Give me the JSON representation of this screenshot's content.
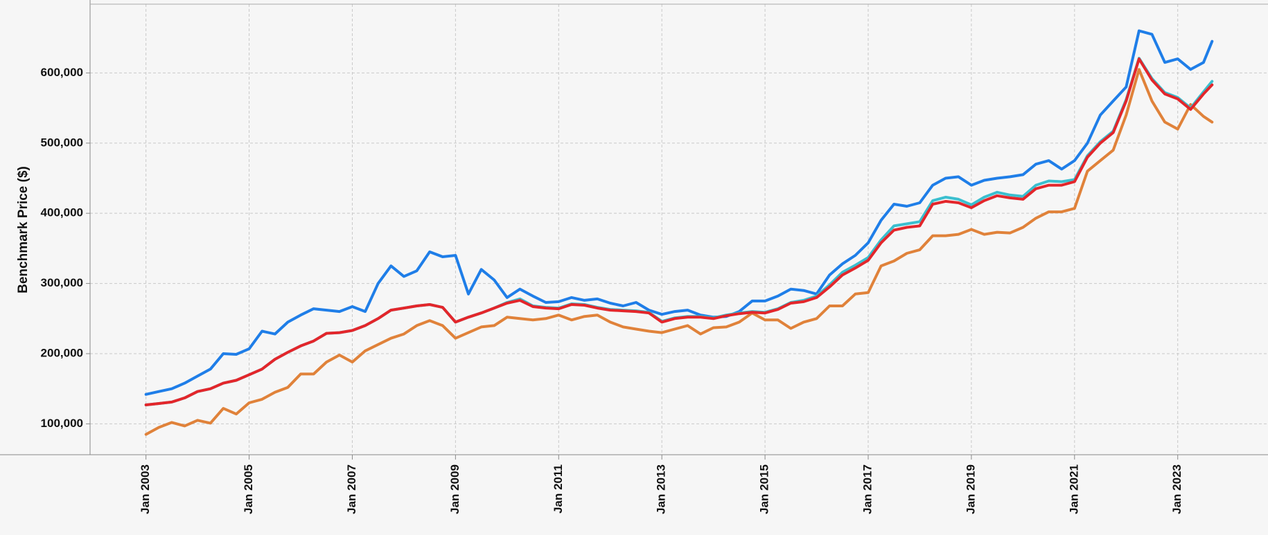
{
  "chart_data": {
    "type": "line",
    "y_label": "Benchmark Price ($)",
    "x": [
      "2003-01",
      "2003-04",
      "2003-07",
      "2003-10",
      "2004-01",
      "2004-04",
      "2004-07",
      "2004-10",
      "2005-01",
      "2005-04",
      "2005-07",
      "2005-10",
      "2006-01",
      "2006-04",
      "2006-07",
      "2006-10",
      "2007-01",
      "2007-04",
      "2007-07",
      "2007-10",
      "2008-01",
      "2008-04",
      "2008-07",
      "2008-10",
      "2009-01",
      "2009-04",
      "2009-07",
      "2009-10",
      "2010-01",
      "2010-04",
      "2010-07",
      "2010-10",
      "2011-01",
      "2011-04",
      "2011-07",
      "2011-10",
      "2012-01",
      "2012-04",
      "2012-07",
      "2012-10",
      "2013-01",
      "2013-04",
      "2013-07",
      "2013-10",
      "2014-01",
      "2014-04",
      "2014-07",
      "2014-10",
      "2015-01",
      "2015-04",
      "2015-07",
      "2015-10",
      "2016-01",
      "2016-04",
      "2016-07",
      "2016-10",
      "2017-01",
      "2017-04",
      "2017-07",
      "2017-10",
      "2018-01",
      "2018-04",
      "2018-07",
      "2018-10",
      "2019-01",
      "2019-04",
      "2019-07",
      "2019-10",
      "2020-01",
      "2020-04",
      "2020-07",
      "2020-10",
      "2021-01",
      "2021-04",
      "2021-07",
      "2021-10",
      "2022-01",
      "2022-04",
      "2022-07",
      "2022-10",
      "2023-01",
      "2023-04",
      "2023-07",
      "2023-09"
    ],
    "series": [
      {
        "color": "#e0823a",
        "values": [
          85000,
          95000,
          102000,
          97000,
          105000,
          101000,
          122000,
          114000,
          130000,
          135000,
          145000,
          152000,
          171000,
          171000,
          188000,
          198000,
          188000,
          204000,
          213000,
          222000,
          228000,
          240000,
          247000,
          240000,
          222000,
          230000,
          238000,
          240000,
          252000,
          250000,
          248000,
          250000,
          255000,
          248000,
          253000,
          255000,
          245000,
          238000,
          235000,
          232000,
          230000,
          235000,
          240000,
          228000,
          237000,
          238000,
          245000,
          258000,
          248000,
          248000,
          236000,
          245000,
          250000,
          268000,
          268000,
          285000,
          287000,
          325000,
          332000,
          343000,
          348000,
          368000,
          368000,
          370000,
          377000,
          370000,
          373000,
          372000,
          380000,
          393000,
          402000,
          402000,
          407000,
          460000,
          475000,
          490000,
          540000,
          605000,
          560000,
          530000,
          520000,
          555000,
          538000,
          530000
        ]
      },
      {
        "color": "#1f7ee8",
        "values": [
          142000,
          146000,
          150000,
          158000,
          168000,
          178000,
          200000,
          199000,
          207000,
          232000,
          228000,
          245000,
          255000,
          264000,
          262000,
          260000,
          267000,
          260000,
          300000,
          325000,
          310000,
          318000,
          345000,
          338000,
          340000,
          285000,
          320000,
          305000,
          280000,
          292000,
          282000,
          273000,
          274000,
          280000,
          276000,
          278000,
          272000,
          268000,
          273000,
          262000,
          256000,
          260000,
          262000,
          255000,
          252000,
          253000,
          260000,
          275000,
          275000,
          282000,
          292000,
          290000,
          285000,
          312000,
          328000,
          340000,
          358000,
          390000,
          413000,
          410000,
          415000,
          440000,
          450000,
          452000,
          440000,
          447000,
          450000,
          452000,
          455000,
          470000,
          475000,
          463000,
          475000,
          500000,
          540000,
          560000,
          580000,
          660000,
          655000,
          615000,
          620000,
          605000,
          615000,
          645000
        ]
      },
      {
        "color": "#3bbfcf",
        "values": [
          127000,
          129000,
          131000,
          137000,
          146000,
          150000,
          158000,
          162000,
          170000,
          178000,
          192000,
          202000,
          211000,
          218000,
          229000,
          230000,
          233000,
          240000,
          250000,
          262000,
          265000,
          268000,
          270000,
          266000,
          245000,
          252000,
          258000,
          265000,
          273000,
          278000,
          268000,
          266000,
          265000,
          271000,
          270000,
          266000,
          263000,
          262000,
          261000,
          259000,
          246000,
          251000,
          253000,
          253000,
          251000,
          255000,
          258000,
          260000,
          259000,
          264000,
          273000,
          276000,
          282000,
          298000,
          316000,
          326000,
          337000,
          362000,
          382000,
          385000,
          388000,
          418000,
          423000,
          420000,
          412000,
          423000,
          430000,
          426000,
          424000,
          440000,
          446000,
          445000,
          448000,
          482000,
          502000,
          517000,
          562000,
          621000,
          592000,
          572000,
          565000,
          550000,
          573000,
          588000
        ]
      },
      {
        "color": "#e3262b",
        "values": [
          127000,
          129000,
          131000,
          137000,
          146000,
          150000,
          158000,
          162000,
          170000,
          178000,
          192000,
          202000,
          211000,
          218000,
          229000,
          230000,
          233000,
          240000,
          250000,
          262000,
          265000,
          268000,
          270000,
          266000,
          245000,
          252000,
          258000,
          265000,
          272000,
          276000,
          267000,
          265000,
          264000,
          270000,
          269000,
          265000,
          262000,
          261000,
          260000,
          258000,
          245000,
          250000,
          252000,
          252000,
          250000,
          254000,
          257000,
          259000,
          258000,
          263000,
          272000,
          274000,
          280000,
          295000,
          312000,
          322000,
          333000,
          358000,
          376000,
          380000,
          382000,
          413000,
          417000,
          415000,
          408000,
          418000,
          425000,
          422000,
          420000,
          435000,
          440000,
          440000,
          445000,
          480000,
          500000,
          515000,
          560000,
          620000,
          590000,
          570000,
          563000,
          548000,
          570000,
          583000
        ]
      }
    ],
    "xlim": [
      "2001-12",
      "2024-10"
    ],
    "xticks": [
      {
        "value": "2003-01",
        "label": "Jan 2003"
      },
      {
        "value": "2005-01",
        "label": "Jan 2005"
      },
      {
        "value": "2007-01",
        "label": "Jan 2007"
      },
      {
        "value": "2009-01",
        "label": "Jan 2009"
      },
      {
        "value": "2011-01",
        "label": "Jan 2011"
      },
      {
        "value": "2013-01",
        "label": "Jan 2013"
      },
      {
        "value": "2015-01",
        "label": "Jan 2015"
      },
      {
        "value": "2017-01",
        "label": "Jan 2017"
      },
      {
        "value": "2019-01",
        "label": "Jan 2019"
      },
      {
        "value": "2021-01",
        "label": "Jan 2021"
      },
      {
        "value": "2023-01",
        "label": "Jan 2023"
      }
    ],
    "ylim": [
      56000,
      698000
    ],
    "yticks": [
      {
        "value": 100000,
        "label": "100,000"
      },
      {
        "value": 200000,
        "label": "200,000"
      },
      {
        "value": 300000,
        "label": "300,000"
      },
      {
        "value": 400000,
        "label": "400,000"
      },
      {
        "value": 500000,
        "label": "500,000"
      },
      {
        "value": 600000,
        "label": "600,000"
      }
    ],
    "grid": true
  }
}
